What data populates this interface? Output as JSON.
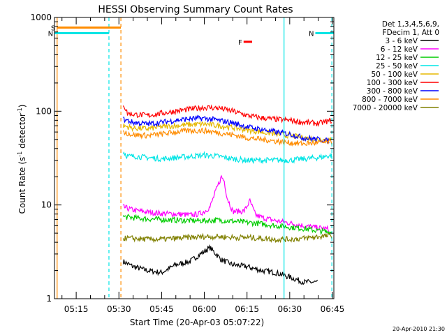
{
  "chart_data": {
    "type": "line",
    "title": "HESSI Observing Summary Count Rates",
    "xlabel": "Start Time (20-Apr-03 05:07:22)",
    "ylabel_main": "Count Rate (s",
    "ylabel_sup1": "-1",
    "ylabel_mid": " detector",
    "ylabel_sup2": "-1",
    "ylabel_end": ")",
    "ylog": true,
    "ylim": [
      1,
      1000
    ],
    "xlim_minutes": [
      7.37,
      105.5
    ],
    "x_ticks": [
      {
        "label": "05:15",
        "minute": 15
      },
      {
        "label": "05:30",
        "minute": 30
      },
      {
        "label": "05:45",
        "minute": 45
      },
      {
        "label": "06:00",
        "minute": 60
      },
      {
        "label": "06:15",
        "minute": 75
      },
      {
        "label": "06:30",
        "minute": 90
      },
      {
        "label": "06:45",
        "minute": 105
      }
    ],
    "y_ticks": [
      {
        "label": "1",
        "value": 1
      },
      {
        "label": "10",
        "value": 10
      },
      {
        "label": "100",
        "value": 100
      },
      {
        "label": "1000",
        "value": 1000
      }
    ],
    "legend_header": [
      "Det 1,3,4,5,6,9,",
      "FDecim 1, Att 0"
    ],
    "series": [
      {
        "name": "3 - 6 keV",
        "color": "#000000",
        "points": [
          [
            31.5,
            2.5
          ],
          [
            35,
            2.2
          ],
          [
            40,
            2.0
          ],
          [
            45,
            1.9
          ],
          [
            50,
            2.3
          ],
          [
            55,
            2.5
          ],
          [
            60,
            3.2
          ],
          [
            62,
            3.5
          ],
          [
            66,
            2.6
          ],
          [
            70,
            2.3
          ],
          [
            75,
            2.2
          ],
          [
            80,
            2.0
          ],
          [
            85,
            1.9
          ],
          [
            90,
            1.7
          ],
          [
            95,
            1.5
          ],
          [
            100,
            1.5
          ]
        ]
      },
      {
        "name": "6 - 12 keV",
        "color": "#ff00ff",
        "points": [
          [
            31.5,
            9.5
          ],
          [
            35,
            8.8
          ],
          [
            40,
            8.4
          ],
          [
            45,
            8.1
          ],
          [
            50,
            8.0
          ],
          [
            55,
            7.8
          ],
          [
            58,
            8.0
          ],
          [
            60,
            8.5
          ],
          [
            62,
            9.5
          ],
          [
            64,
            14
          ],
          [
            66,
            20
          ],
          [
            67,
            18
          ],
          [
            68,
            12
          ],
          [
            70,
            8.5
          ],
          [
            74,
            8.6
          ],
          [
            76,
            11
          ],
          [
            78,
            7.8
          ],
          [
            80,
            7.4
          ],
          [
            85,
            6.8
          ],
          [
            90,
            6.4
          ],
          [
            95,
            6.0
          ],
          [
            100,
            5.7
          ],
          [
            104,
            5.5
          ]
        ]
      },
      {
        "name": "12 - 25 keV",
        "color": "#00cc00",
        "points": [
          [
            31.5,
            7.5
          ],
          [
            35,
            7.3
          ],
          [
            40,
            7.1
          ],
          [
            45,
            7.0
          ],
          [
            50,
            6.9
          ],
          [
            55,
            6.8
          ],
          [
            60,
            6.8
          ],
          [
            65,
            6.9
          ],
          [
            70,
            6.7
          ],
          [
            75,
            6.5
          ],
          [
            80,
            6.3
          ],
          [
            85,
            6.0
          ],
          [
            90,
            5.8
          ],
          [
            95,
            5.6
          ],
          [
            100,
            5.3
          ],
          [
            105,
            5.1
          ]
        ]
      },
      {
        "name": "25 - 50 keV",
        "color": "#00e5e5",
        "points": [
          [
            31.5,
            37
          ],
          [
            33,
            33
          ],
          [
            36,
            33
          ],
          [
            40,
            32
          ],
          [
            45,
            31
          ],
          [
            50,
            32
          ],
          [
            55,
            33
          ],
          [
            60,
            34
          ],
          [
            65,
            33
          ],
          [
            70,
            31
          ],
          [
            75,
            30
          ],
          [
            80,
            30
          ],
          [
            85,
            30
          ],
          [
            90,
            30
          ],
          [
            95,
            31
          ],
          [
            100,
            32
          ],
          [
            105,
            34
          ]
        ]
      },
      {
        "name": "50 - 100 keV",
        "color": "#e5b800",
        "points": [
          [
            31.5,
            70
          ],
          [
            35,
            66
          ],
          [
            40,
            65
          ],
          [
            45,
            68
          ],
          [
            50,
            70
          ],
          [
            55,
            72
          ],
          [
            60,
            73
          ],
          [
            65,
            70
          ],
          [
            70,
            67
          ],
          [
            75,
            63
          ],
          [
            80,
            60
          ],
          [
            85,
            57
          ],
          [
            90,
            55
          ],
          [
            95,
            52
          ],
          [
            100,
            50
          ],
          [
            105,
            49
          ]
        ]
      },
      {
        "name": "100 - 300 keV",
        "color": "#ff0000",
        "points": [
          [
            31.5,
            120
          ],
          [
            33,
            95
          ],
          [
            36,
            92
          ],
          [
            40,
            90
          ],
          [
            45,
            95
          ],
          [
            50,
            100
          ],
          [
            55,
            105
          ],
          [
            60,
            110
          ],
          [
            65,
            108
          ],
          [
            70,
            100
          ],
          [
            75,
            90
          ],
          [
            80,
            85
          ],
          [
            85,
            82
          ],
          [
            90,
            80
          ],
          [
            95,
            76
          ],
          [
            100,
            74
          ],
          [
            105,
            80
          ]
        ]
      },
      {
        "name": "300 - 800 keV",
        "color": "#0000ff",
        "points": [
          [
            31.5,
            82
          ],
          [
            35,
            76
          ],
          [
            40,
            73
          ],
          [
            45,
            76
          ],
          [
            50,
            80
          ],
          [
            55,
            83
          ],
          [
            60,
            84
          ],
          [
            65,
            80
          ],
          [
            70,
            75
          ],
          [
            75,
            68
          ],
          [
            80,
            64
          ],
          [
            85,
            60
          ],
          [
            90,
            57
          ],
          [
            95,
            52
          ],
          [
            100,
            50
          ],
          [
            104,
            48
          ]
        ]
      },
      {
        "name": "800 - 7000 keV",
        "color": "#ff8c00",
        "points": [
          [
            31.5,
            60
          ],
          [
            35,
            56
          ],
          [
            40,
            55
          ],
          [
            45,
            57
          ],
          [
            50,
            60
          ],
          [
            55,
            62
          ],
          [
            60,
            62
          ],
          [
            65,
            59
          ],
          [
            70,
            56
          ],
          [
            75,
            52
          ],
          [
            80,
            50
          ],
          [
            85,
            48
          ],
          [
            90,
            46
          ],
          [
            95,
            45
          ],
          [
            100,
            46
          ],
          [
            105,
            47
          ]
        ]
      },
      {
        "name": "7000 - 20000 keV",
        "color": "#808000",
        "points": [
          [
            31.5,
            4.4
          ],
          [
            35,
            4.4
          ],
          [
            40,
            4.3
          ],
          [
            45,
            4.3
          ],
          [
            50,
            4.4
          ],
          [
            55,
            4.5
          ],
          [
            60,
            4.6
          ],
          [
            65,
            4.6
          ],
          [
            70,
            4.5
          ],
          [
            75,
            4.5
          ],
          [
            80,
            4.4
          ],
          [
            85,
            4.3
          ],
          [
            90,
            4.3
          ],
          [
            95,
            4.4
          ],
          [
            100,
            4.6
          ],
          [
            105,
            4.7
          ]
        ]
      }
    ],
    "flags": [
      {
        "label": "S",
        "color": "#ff8c00",
        "start_minute": 8.2,
        "end_minute": 30.7,
        "level": 780
      },
      {
        "label": "N",
        "color": "#00e5e5",
        "start_minute": 7.4,
        "end_minute": 26.5,
        "level": 680
      },
      {
        "label": "N",
        "color": "#00e5e5",
        "start_minute": 99.0,
        "end_minute": 105.5,
        "level": 680
      },
      {
        "label": "F",
        "color": "#ff0000",
        "start_minute": 73.8,
        "end_minute": 76.8,
        "level": 550
      }
    ],
    "vlines": [
      {
        "minute": 8.3,
        "color": "#ff8c00",
        "style": "solid"
      },
      {
        "minute": 26.5,
        "color": "#00e5e5",
        "style": "dashed"
      },
      {
        "minute": 30.7,
        "color": "#ff8c00",
        "style": "dashed"
      },
      {
        "minute": 88.0,
        "color": "#00e5e5",
        "style": "solid"
      },
      {
        "minute": 104.8,
        "color": "#00e5e5",
        "style": "dashed"
      }
    ]
  },
  "footer": {
    "date": "20-Apr-2010 21:30"
  }
}
